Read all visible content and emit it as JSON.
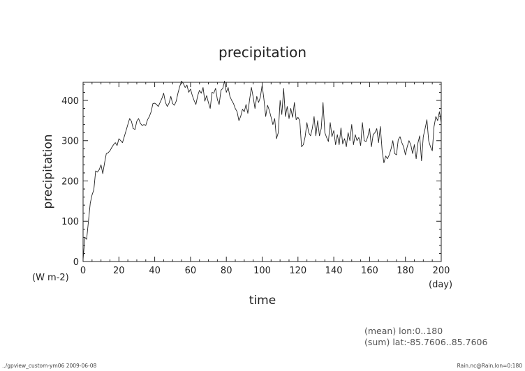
{
  "chart_data": {
    "type": "line",
    "title": "precipitation",
    "xlabel": "time",
    "ylabel": "precipitation",
    "xunit": "(day)",
    "yunit": "(W m-2)",
    "xlim": [
      0,
      200
    ],
    "ylim": [
      0,
      445
    ],
    "xticks": [
      0,
      20,
      40,
      60,
      80,
      100,
      120,
      140,
      160,
      180,
      200
    ],
    "yticks": [
      0,
      100,
      200,
      300,
      400
    ],
    "grid": false,
    "series": [
      {
        "values": [
          [
            0,
            5
          ],
          [
            1,
            60
          ],
          [
            2,
            55
          ],
          [
            3,
            100
          ],
          [
            4,
            145
          ],
          [
            5,
            165
          ],
          [
            6,
            178
          ],
          [
            7,
            225
          ],
          [
            8,
            222
          ],
          [
            9,
            228
          ],
          [
            10,
            240
          ],
          [
            11,
            218
          ],
          [
            12,
            245
          ],
          [
            13,
            268
          ],
          [
            14,
            270
          ],
          [
            15,
            275
          ],
          [
            16,
            283
          ],
          [
            17,
            290
          ],
          [
            18,
            295
          ],
          [
            19,
            288
          ],
          [
            20,
            305
          ],
          [
            21,
            300
          ],
          [
            22,
            295
          ],
          [
            23,
            310
          ],
          [
            24,
            325
          ],
          [
            25,
            340
          ],
          [
            26,
            355
          ],
          [
            27,
            348
          ],
          [
            28,
            330
          ],
          [
            29,
            328
          ],
          [
            30,
            348
          ],
          [
            31,
            355
          ],
          [
            32,
            343
          ],
          [
            33,
            338
          ],
          [
            34,
            340
          ],
          [
            35,
            338
          ],
          [
            36,
            352
          ],
          [
            37,
            360
          ],
          [
            38,
            372
          ],
          [
            39,
            392
          ],
          [
            40,
            393
          ],
          [
            41,
            390
          ],
          [
            42,
            385
          ],
          [
            43,
            395
          ],
          [
            44,
            405
          ],
          [
            45,
            418
          ],
          [
            46,
            395
          ],
          [
            47,
            385
          ],
          [
            48,
            393
          ],
          [
            49,
            410
          ],
          [
            50,
            392
          ],
          [
            51,
            388
          ],
          [
            52,
            398
          ],
          [
            53,
            418
          ],
          [
            54,
            435
          ],
          [
            55,
            448
          ],
          [
            56,
            442
          ],
          [
            57,
            432
          ],
          [
            58,
            438
          ],
          [
            59,
            420
          ],
          [
            60,
            428
          ],
          [
            61,
            412
          ],
          [
            62,
            400
          ],
          [
            63,
            390
          ],
          [
            64,
            412
          ],
          [
            65,
            425
          ],
          [
            66,
            418
          ],
          [
            67,
            432
          ],
          [
            68,
            398
          ],
          [
            69,
            412
          ],
          [
            70,
            395
          ],
          [
            71,
            380
          ],
          [
            72,
            420
          ],
          [
            73,
            418
          ],
          [
            74,
            430
          ],
          [
            75,
            402
          ],
          [
            76,
            390
          ],
          [
            77,
            425
          ],
          [
            78,
            430
          ],
          [
            79,
            448
          ],
          [
            80,
            420
          ],
          [
            81,
            432
          ],
          [
            82,
            410
          ],
          [
            83,
            400
          ],
          [
            84,
            392
          ],
          [
            85,
            380
          ],
          [
            86,
            372
          ],
          [
            87,
            350
          ],
          [
            88,
            360
          ],
          [
            89,
            378
          ],
          [
            90,
            372
          ],
          [
            91,
            390
          ],
          [
            92,
            368
          ],
          [
            93,
            402
          ],
          [
            94,
            432
          ],
          [
            95,
            408
          ],
          [
            96,
            380
          ],
          [
            97,
            410
          ],
          [
            98,
            395
          ],
          [
            99,
            408
          ],
          [
            100,
            438
          ],
          [
            101,
            402
          ],
          [
            102,
            360
          ],
          [
            103,
            388
          ],
          [
            104,
            375
          ],
          [
            105,
            358
          ],
          [
            106,
            340
          ],
          [
            107,
            355
          ],
          [
            108,
            305
          ],
          [
            109,
            320
          ],
          [
            110,
            400
          ],
          [
            111,
            365
          ],
          [
            112,
            430
          ],
          [
            113,
            360
          ],
          [
            114,
            385
          ],
          [
            115,
            355
          ],
          [
            116,
            380
          ],
          [
            117,
            358
          ],
          [
            118,
            395
          ],
          [
            119,
            352
          ],
          [
            120,
            358
          ],
          [
            121,
            350
          ],
          [
            122,
            285
          ],
          [
            123,
            290
          ],
          [
            124,
            310
          ],
          [
            125,
            345
          ],
          [
            126,
            320
          ],
          [
            127,
            312
          ],
          [
            128,
            330
          ],
          [
            129,
            360
          ],
          [
            130,
            312
          ],
          [
            131,
            350
          ],
          [
            132,
            312
          ],
          [
            133,
            330
          ],
          [
            134,
            395
          ],
          [
            135,
            320
          ],
          [
            136,
            308
          ],
          [
            137,
            298
          ],
          [
            138,
            345
          ],
          [
            139,
            310
          ],
          [
            140,
            325
          ],
          [
            141,
            290
          ],
          [
            142,
            315
          ],
          [
            143,
            290
          ],
          [
            144,
            332
          ],
          [
            145,
            292
          ],
          [
            146,
            305
          ],
          [
            147,
            285
          ],
          [
            148,
            320
          ],
          [
            149,
            300
          ],
          [
            150,
            340
          ],
          [
            151,
            290
          ],
          [
            152,
            315
          ],
          [
            153,
            300
          ],
          [
            154,
            308
          ],
          [
            155,
            288
          ],
          [
            156,
            345
          ],
          [
            157,
            300
          ],
          [
            158,
            298
          ],
          [
            159,
            310
          ],
          [
            160,
            330
          ],
          [
            161,
            285
          ],
          [
            162,
            315
          ],
          [
            163,
            320
          ],
          [
            164,
            330
          ],
          [
            165,
            295
          ],
          [
            166,
            335
          ],
          [
            167,
            275
          ],
          [
            168,
            245
          ],
          [
            169,
            262
          ],
          [
            170,
            255
          ],
          [
            171,
            265
          ],
          [
            172,
            280
          ],
          [
            173,
            300
          ],
          [
            174,
            268
          ],
          [
            175,
            265
          ],
          [
            176,
            302
          ],
          [
            177,
            310
          ],
          [
            178,
            295
          ],
          [
            179,
            285
          ],
          [
            180,
            265
          ],
          [
            181,
            285
          ],
          [
            182,
            300
          ],
          [
            183,
            290
          ],
          [
            184,
            268
          ],
          [
            185,
            290
          ],
          [
            186,
            255
          ],
          [
            187,
            295
          ],
          [
            188,
            312
          ],
          [
            189,
            250
          ],
          [
            190,
            310
          ],
          [
            191,
            330
          ],
          [
            192,
            352
          ],
          [
            193,
            300
          ],
          [
            194,
            285
          ],
          [
            195,
            275
          ],
          [
            196,
            335
          ],
          [
            197,
            360
          ],
          [
            198,
            350
          ],
          [
            199,
            372
          ],
          [
            200,
            345
          ]
        ]
      }
    ]
  },
  "notes": {
    "mean": "(mean) lon:0..180",
    "sum": "(sum) lat:-85.7606..85.7606"
  },
  "footer": {
    "left": "../gpview_custom-ym06  2009-06-08",
    "right": "Rain.nc@Rain,lon=0:180"
  }
}
